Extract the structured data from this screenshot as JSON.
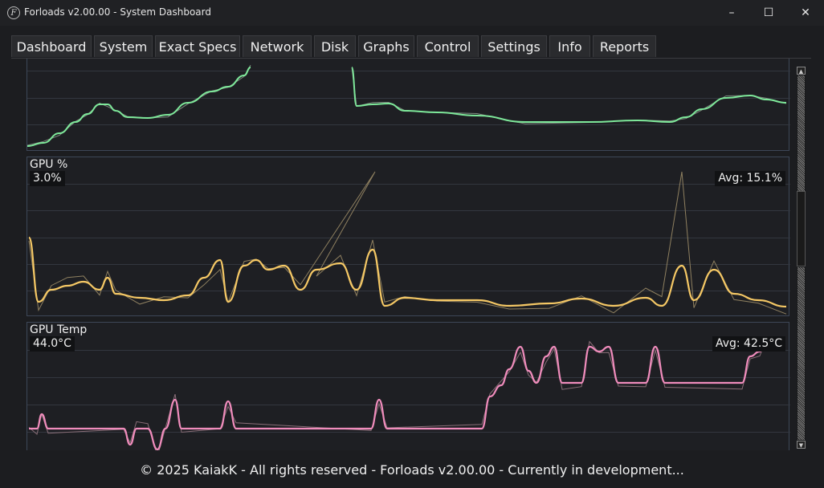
{
  "window": {
    "title": "Forloads v2.00.00 - System Dashboard",
    "logo_glyph": "F",
    "controls": {
      "minimize": "–",
      "maximize": "☐",
      "close": "✕"
    }
  },
  "tabs": [
    {
      "label": "Dashboard"
    },
    {
      "label": "System"
    },
    {
      "label": "Exact Specs"
    },
    {
      "label": "Network"
    },
    {
      "label": "Disk"
    },
    {
      "label": "Graphs",
      "active": true
    },
    {
      "label": "Control"
    },
    {
      "label": "Settings"
    },
    {
      "label": "Info"
    },
    {
      "label": "Reports"
    }
  ],
  "graphs": {
    "top": {
      "color": "#7ee89a",
      "raw_color": "#7f8c80"
    },
    "gpu_usage": {
      "label": "GPU %",
      "current": "3.0%",
      "average": "Avg: 15.1%",
      "color": "#f5c865",
      "raw_color": "#8f8060"
    },
    "gpu_temp": {
      "label": "GPU Temp",
      "current": "44.0°C",
      "average": "Avg: 42.5°C",
      "color": "#f08cbc",
      "raw_color": "#8a6e78"
    }
  },
  "scrollbar": {
    "up": "▲",
    "down": "▼"
  },
  "footer": "© 2025 KaiakK - All rights reserved - Forloads v2.00.00 - Currently in development..."
}
